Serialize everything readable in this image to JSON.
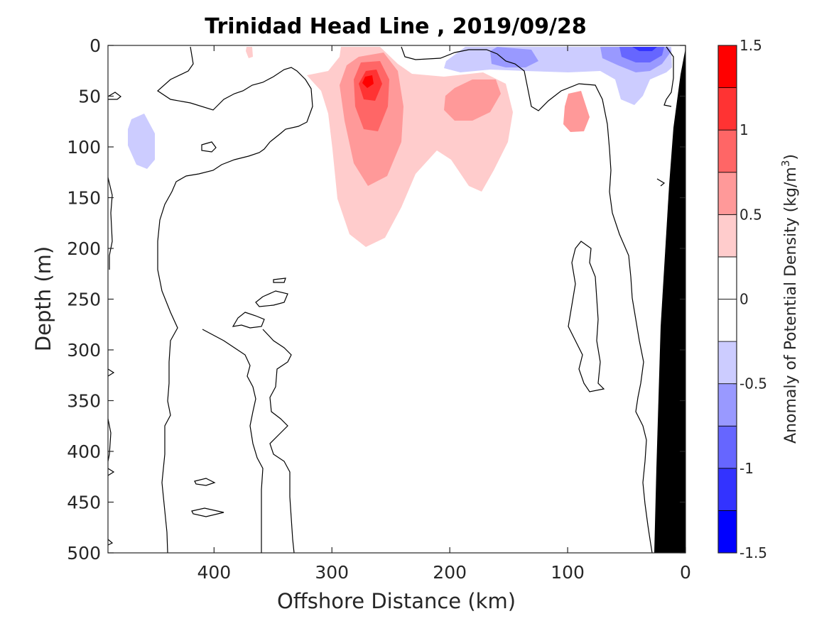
{
  "chart_data": {
    "type": "contour",
    "title": "Trinidad Head Line , 2019/09/28",
    "xlabel": "Offshore Distance (km)",
    "ylabel": "Depth (m)",
    "colorbar_label_prefix": "Anomaly of Potential Density (kg/m",
    "colorbar_label_exp": "3",
    "colorbar_label_suffix": ")",
    "xlim": [
      490,
      0
    ],
    "ylim": [
      0,
      500
    ],
    "x_reversed": true,
    "y_reversed": true,
    "grid": false,
    "xticks": [
      400,
      300,
      200,
      100,
      0
    ],
    "xtick_labels": [
      "400",
      "300",
      "200",
      "100",
      "0"
    ],
    "yticks": [
      0,
      50,
      100,
      150,
      200,
      250,
      300,
      350,
      400,
      450,
      500
    ],
    "ytick_labels": [
      "0",
      "50",
      "100",
      "150",
      "200",
      "250",
      "300",
      "350",
      "400",
      "450",
      "500"
    ],
    "colorbar": {
      "range": [
        -1.5,
        1.5
      ],
      "levels": [
        -1.5,
        -1.25,
        -1.0,
        -0.75,
        -0.5,
        -0.25,
        0,
        0.25,
        0.5,
        0.75,
        1.0,
        1.25,
        1.5
      ],
      "colors": [
        "#0000ff",
        "#3333ff",
        "#6666ff",
        "#9999ff",
        "#ccccff",
        "#ffffff",
        "#ffffff",
        "#ffcccc",
        "#ff9999",
        "#ff6666",
        "#ff3333",
        "#ff0000"
      ],
      "ticks": [
        1.5,
        1,
        0.5,
        0,
        -0.5,
        -1,
        -1.5
      ],
      "tick_labels": [
        "1.5",
        "1",
        "0.5",
        "0",
        "-0.5",
        "-1",
        "-1.5"
      ]
    },
    "features": [
      {
        "name": "positive anomaly core",
        "x": 270,
        "y": 35,
        "value": 1.25
      },
      {
        "name": "positive anomaly secondary",
        "x": 185,
        "y": 55,
        "value": 0.6
      },
      {
        "name": "negative anomaly surface",
        "x": 40,
        "y": 5,
        "value": -1.1
      },
      {
        "name": "negative anomaly west",
        "x": 460,
        "y": 90,
        "value": -0.35
      }
    ],
    "bathymetry_color": "#000000"
  }
}
